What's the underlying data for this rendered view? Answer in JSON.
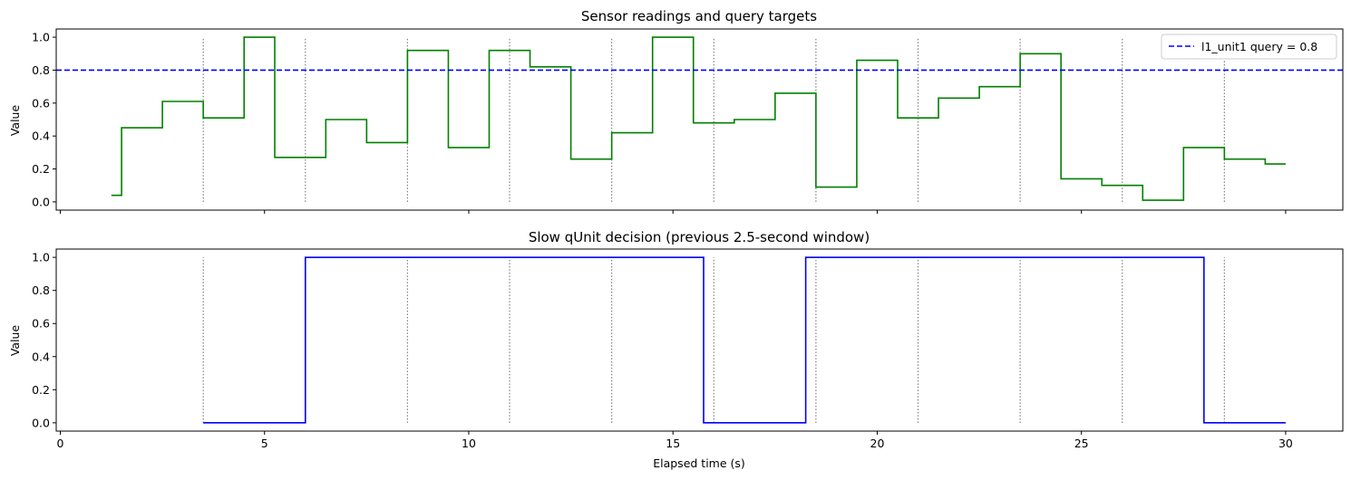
{
  "chart_data": [
    {
      "type": "line",
      "step": "post",
      "title": "Sensor readings and query targets",
      "xlabel": "",
      "ylabel": "Value",
      "xlim": [
        -0.1,
        31.4
      ],
      "ylim": [
        -0.05,
        1.05
      ],
      "xticks": [
        0,
        5,
        10,
        15,
        20,
        25,
        30
      ],
      "xtick_labels_visible": false,
      "yticks": [
        0.0,
        0.2,
        0.4,
        0.6,
        0.8,
        1.0
      ],
      "ytick_labels": [
        "0.0",
        "0.2",
        "0.4",
        "0.6",
        "0.8",
        "1.0"
      ],
      "vlines": [
        3.5,
        6.0,
        8.5,
        11.0,
        13.5,
        16.0,
        18.5,
        21.0,
        23.5,
        26.0,
        28.5
      ],
      "vline_color": "#808080",
      "series": [
        {
          "color": "#008000",
          "x": [
            1.25,
            1.5,
            2.5,
            3.5,
            4.5,
            5.25,
            6.5,
            7.5,
            8.5,
            9.5,
            10.5,
            11.5,
            12.5,
            13.5,
            14.5,
            15.5,
            16.5,
            17.5,
            18.5,
            19.5,
            20.5,
            21.5,
            22.5,
            23.5,
            24.5,
            25.5,
            26.5,
            27.5,
            28.5,
            29.5,
            30.0
          ],
          "y": [
            0.04,
            0.45,
            0.61,
            0.51,
            1.0,
            0.27,
            0.5,
            0.36,
            0.92,
            0.33,
            0.92,
            0.82,
            0.26,
            0.42,
            1.0,
            0.48,
            0.5,
            0.66,
            0.09,
            0.86,
            0.51,
            0.63,
            0.7,
            0.9,
            0.14,
            0.1,
            0.01,
            0.33,
            0.26,
            0.23,
            0.23
          ]
        },
        {
          "name": "l1_unit1 query = 0.8",
          "color": "#0000ff",
          "dashed": true,
          "hline": 0.8
        }
      ],
      "legend": "top-right"
    },
    {
      "type": "line",
      "step": "post",
      "title": "Slow qUnit decision (previous 2.5-second window)",
      "xlabel": "Elapsed time (s)",
      "ylabel": "Value",
      "xlim": [
        -0.1,
        31.4
      ],
      "ylim": [
        -0.05,
        1.05
      ],
      "xticks": [
        0,
        5,
        10,
        15,
        20,
        25,
        30
      ],
      "xtick_labels": [
        "0",
        "5",
        "10",
        "15",
        "20",
        "25",
        "30"
      ],
      "yticks": [
        0.0,
        0.2,
        0.4,
        0.6,
        0.8,
        1.0
      ],
      "ytick_labels": [
        "0.0",
        "0.2",
        "0.4",
        "0.6",
        "0.8",
        "1.0"
      ],
      "vlines": [
        3.5,
        6.0,
        8.5,
        11.0,
        13.5,
        16.0,
        18.5,
        21.0,
        23.5,
        26.0,
        28.5
      ],
      "vline_color": "#808080",
      "series": [
        {
          "color": "#0000ff",
          "x": [
            3.5,
            6.0,
            15.75,
            18.25,
            28.0,
            30.0
          ],
          "y": [
            0,
            1,
            0,
            1,
            0,
            0
          ]
        }
      ]
    }
  ]
}
